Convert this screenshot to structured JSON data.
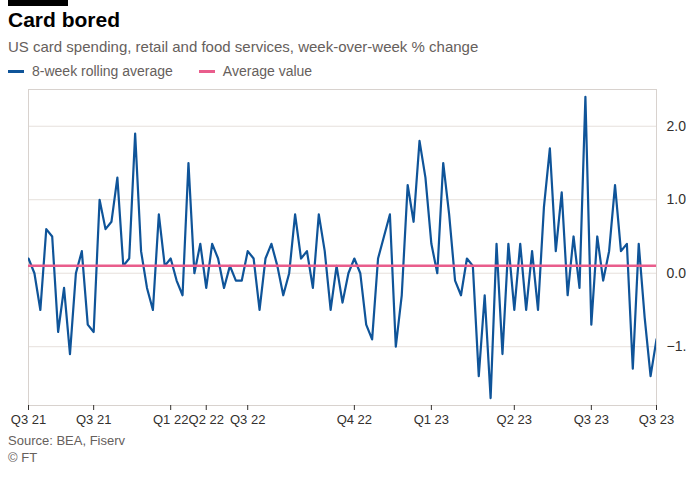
{
  "chart_data": {
    "type": "line",
    "title": "Card bored",
    "subtitle": "US card spending, retail and food services, week-over-week % change",
    "source": "Source: BEA, Fiserv",
    "credit": "© FT",
    "categories": [
      "Q3 21",
      null,
      null,
      null,
      null,
      null,
      null,
      null,
      null,
      null,
      null,
      "Q3 21",
      null,
      null,
      null,
      null,
      null,
      null,
      null,
      null,
      null,
      null,
      null,
      null,
      "Q1 22",
      null,
      null,
      null,
      null,
      null,
      "Q2 22",
      null,
      null,
      null,
      null,
      null,
      null,
      "Q3 22",
      null,
      null,
      null,
      null,
      null,
      null,
      null,
      null,
      null,
      null,
      null,
      null,
      null,
      null,
      null,
      null,
      null,
      "Q4 22",
      null,
      null,
      null,
      null,
      null,
      null,
      null,
      null,
      null,
      null,
      null,
      null,
      "Q1 23",
      null,
      null,
      null,
      null,
      null,
      null,
      null,
      null,
      null,
      null,
      null,
      null,
      null,
      "Q2 23",
      null,
      null,
      null,
      null,
      null,
      null,
      null,
      null,
      null,
      null,
      null,
      null,
      "Q3 23",
      null,
      null,
      null,
      null,
      null,
      null,
      null,
      null,
      null,
      null,
      "Q3 23"
    ],
    "series": [
      {
        "name": "8-week rolling average",
        "color": "#0f5499",
        "type": "line",
        "values": [
          0.2,
          0.0,
          -0.5,
          0.6,
          0.5,
          -0.8,
          -0.2,
          -1.1,
          0.0,
          0.3,
          -0.7,
          -0.8,
          1.0,
          0.6,
          0.7,
          1.3,
          0.1,
          0.2,
          1.9,
          0.3,
          -0.2,
          -0.5,
          0.8,
          0.1,
          0.2,
          -0.1,
          -0.3,
          1.5,
          0.0,
          0.4,
          -0.2,
          0.4,
          0.2,
          -0.2,
          0.1,
          -0.1,
          -0.1,
          0.3,
          0.2,
          -0.5,
          0.2,
          0.4,
          0.1,
          -0.3,
          0.0,
          0.8,
          0.2,
          0.3,
          -0.2,
          0.8,
          0.3,
          -0.5,
          0.1,
          -0.4,
          0.0,
          0.2,
          0.0,
          -0.7,
          -0.9,
          0.2,
          0.5,
          0.8,
          -1.0,
          -0.3,
          1.2,
          0.7,
          1.8,
          1.3,
          0.4,
          0.0,
          1.5,
          0.8,
          -0.1,
          -0.3,
          0.2,
          0.1,
          -1.4,
          -0.3,
          -1.7,
          0.4,
          -1.1,
          0.4,
          -0.5,
          0.4,
          -0.5,
          0.3,
          -0.5,
          0.9,
          1.7,
          0.3,
          1.1,
          -0.3,
          0.5,
          -0.2,
          2.4,
          -0.7,
          0.5,
          -0.1,
          0.3,
          1.2,
          0.3,
          0.4,
          -1.3,
          0.4,
          -0.6,
          -1.4,
          -0.9
        ]
      },
      {
        "name": "Average value",
        "color": "#e95d8c",
        "type": "line",
        "values": [
          0.1,
          0.1,
          0.1,
          0.1,
          0.1,
          0.1,
          0.1,
          0.1,
          0.1,
          0.1,
          0.1,
          0.1,
          0.1,
          0.1,
          0.1,
          0.1,
          0.1,
          0.1,
          0.1,
          0.1,
          0.1,
          0.1,
          0.1,
          0.1,
          0.1,
          0.1,
          0.1,
          0.1,
          0.1,
          0.1,
          0.1,
          0.1,
          0.1,
          0.1,
          0.1,
          0.1,
          0.1,
          0.1,
          0.1,
          0.1,
          0.1,
          0.1,
          0.1,
          0.1,
          0.1,
          0.1,
          0.1,
          0.1,
          0.1,
          0.1,
          0.1,
          0.1,
          0.1,
          0.1,
          0.1,
          0.1,
          0.1,
          0.1,
          0.1,
          0.1,
          0.1,
          0.1,
          0.1,
          0.1,
          0.1,
          0.1,
          0.1,
          0.1,
          0.1,
          0.1,
          0.1,
          0.1,
          0.1,
          0.1,
          0.1,
          0.1,
          0.1,
          0.1,
          0.1,
          0.1,
          0.1,
          0.1,
          0.1,
          0.1,
          0.1,
          0.1,
          0.1,
          0.1,
          0.1,
          0.1,
          0.1,
          0.1,
          0.1,
          0.1,
          0.1,
          0.1,
          0.1,
          0.1,
          0.1,
          0.1,
          0.1,
          0.1,
          0.1,
          0.1,
          0.1,
          0.1,
          0.1
        ]
      }
    ],
    "ylim": [
      -1.8,
      2.5
    ],
    "yticks": [
      -1,
      0,
      1,
      2
    ],
    "grid": true,
    "legend": "top-left"
  }
}
